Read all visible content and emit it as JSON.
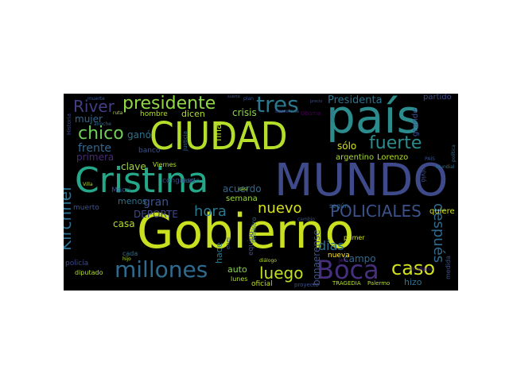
{
  "wordcloud": {
    "background": "#000000",
    "palette": [
      "#fde725",
      "#b5de2b",
      "#6ece58",
      "#35b779",
      "#1f9e89",
      "#26828e",
      "#31688e",
      "#3e4989",
      "#482878",
      "#440154"
    ],
    "words": [
      {
        "text": "Gobierno",
        "color": "#c8e020"
      },
      {
        "text": "CIUDAD",
        "color": "#b5de2b"
      },
      {
        "text": "país",
        "color": "#2c8c8d"
      },
      {
        "text": "MUNDO",
        "color": "#3e4a89"
      },
      {
        "text": "Cristina",
        "color": "#25a88a"
      },
      {
        "text": "presidente",
        "color": "#8fd744"
      },
      {
        "text": "tres",
        "color": "#2a788e"
      },
      {
        "text": "millones",
        "color": "#2f6b8e"
      },
      {
        "text": "Boca",
        "color": "#46307e"
      },
      {
        "text": "caso",
        "color": "#d2e21b"
      },
      {
        "text": "fuerte",
        "color": "#2c8c8d"
      },
      {
        "text": "chico",
        "color": "#6ece58"
      },
      {
        "text": "POLICIALES",
        "color": "#3b528b"
      },
      {
        "text": "Kirchner",
        "color": "#2e6e8e"
      },
      {
        "text": "River",
        "color": "#433e85"
      },
      {
        "text": "luego",
        "color": "#c2df23"
      },
      {
        "text": "nuevo",
        "color": "#d8e219"
      },
      {
        "text": "hora",
        "color": "#2a788e"
      },
      {
        "text": "después",
        "color": "#306a8e"
      },
      {
        "text": "gran",
        "color": "#3b528b"
      },
      {
        "text": "frente",
        "color": "#31688e"
      },
      {
        "text": "Presidenta",
        "color": "#2c728e"
      },
      {
        "text": "mujer",
        "color": "#31688e"
      },
      {
        "text": "primera",
        "color": "#482878"
      },
      {
        "text": "acuerdo",
        "color": "#31688e"
      },
      {
        "text": "DEPORTE",
        "color": "#3e4989"
      },
      {
        "text": "días",
        "color": "#2d718e"
      },
      {
        "text": "campo",
        "color": "#31688e"
      },
      {
        "text": "ganó",
        "color": "#2c728e"
      },
      {
        "text": "crisis",
        "color": "#8bd646"
      },
      {
        "text": "clave",
        "color": "#9fda3a"
      },
      {
        "text": "sólo",
        "color": "#d5e21a"
      },
      {
        "text": "casa",
        "color": "#b5de2b"
      },
      {
        "text": "auto",
        "color": "#86d549"
      },
      {
        "text": "menos",
        "color": "#2c728e"
      },
      {
        "text": "final",
        "color": "#c0df25"
      },
      {
        "text": "hace",
        "color": "#2a788e"
      },
      {
        "text": "argentino",
        "color": "#a8db34"
      },
      {
        "text": "Lorenzo",
        "color": "#b8de29"
      },
      {
        "text": "bonaerense",
        "color": "#3b528b"
      },
      {
        "text": "semana",
        "color": "#9fda3a"
      },
      {
        "text": "hizo",
        "color": "#2c728e"
      },
      {
        "text": "partido",
        "color": "#3e4989"
      },
      {
        "text": "grande",
        "color": "#3b528b"
      },
      {
        "text": "quiere",
        "color": "#d0e11c"
      },
      {
        "text": "dicen",
        "color": "#b5de2b"
      },
      {
        "text": "hombre",
        "color": "#b5de2b"
      },
      {
        "text": "oficial",
        "color": "#c0df25"
      },
      {
        "text": "Macri",
        "color": "#3b528b"
      },
      {
        "text": "banco",
        "color": "#3b528b"
      },
      {
        "text": "muerto",
        "color": "#3b528b"
      },
      {
        "text": "policía",
        "color": "#3e4989"
      },
      {
        "text": "equipo",
        "color": "#3e4989"
      },
      {
        "text": "congreso",
        "color": "#3e4989"
      },
      {
        "text": "diputado",
        "color": "#b5de2b"
      },
      {
        "text": "lunes",
        "color": "#b5de2b"
      },
      {
        "text": "primer",
        "color": "#d0e11c"
      },
      {
        "text": "nueva",
        "color": "#fde725"
      },
      {
        "text": "según",
        "color": "#31688e"
      },
      {
        "text": "volvió",
        "color": "#3b528b"
      },
      {
        "text": "medida",
        "color": "#3b528b"
      },
      {
        "text": "Viernes",
        "color": "#b5de2b"
      },
      {
        "text": "punto",
        "color": "#2c728e"
      },
      {
        "text": "ministro",
        "color": "#31688e"
      },
      {
        "text": "cada",
        "color": "#2c728e"
      },
      {
        "text": "mañana",
        "color": "#482878"
      },
      {
        "text": "Justicia",
        "color": "#31688e"
      },
      {
        "text": "Obama",
        "color": "#440154"
      },
      {
        "text": "proyecto",
        "color": "#3b528b"
      },
      {
        "text": "Palermo",
        "color": "#b5de2b"
      },
      {
        "text": "TRAGEDIA",
        "color": "#b5de2b"
      },
      {
        "text": "Historia",
        "color": "#3e4989"
      },
      {
        "text": "muerte",
        "color": "#3b528b"
      },
      {
        "text": "plan",
        "color": "#3b528b"
      },
      {
        "text": "enel",
        "color": "#3b528b"
      },
      {
        "text": "hijo",
        "color": "#b5de2b"
      },
      {
        "text": "Villa",
        "color": "#b5de2b"
      },
      {
        "text": "corte",
        "color": "#31688e"
      },
      {
        "text": "PAÍS",
        "color": "#3b528b"
      },
      {
        "text": "política",
        "color": "#31688e"
      },
      {
        "text": "Mundial",
        "color": "#2c728e"
      },
      {
        "text": "diálogo",
        "color": "#b5de2b"
      },
      {
        "text": "casi",
        "color": "#b5de2b"
      },
      {
        "text": "jefe",
        "color": "#482878"
      },
      {
        "text": "anoche",
        "color": "#31688e"
      },
      {
        "text": "ruta",
        "color": "#b5de2b"
      },
      {
        "text": "suerte",
        "color": "#3b528b"
      },
      {
        "text": "precio",
        "color": "#3b528b"
      },
      {
        "text": "Barcelona",
        "color": "#3e4989"
      },
      {
        "text": "cambio",
        "color": "#3b528b"
      }
    ]
  }
}
